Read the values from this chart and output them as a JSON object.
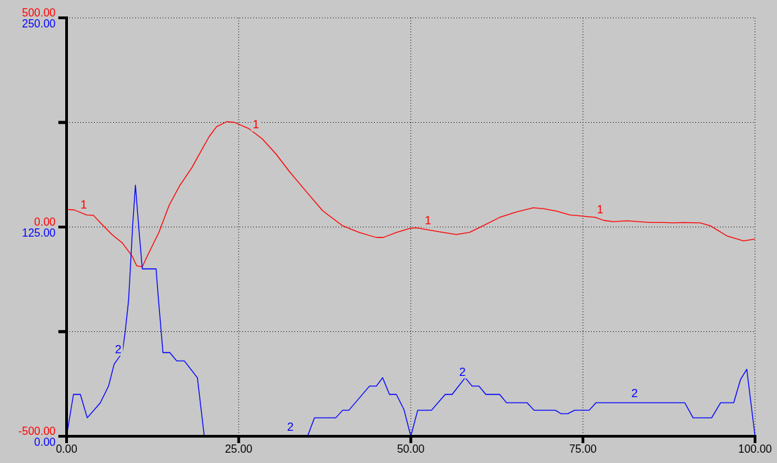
{
  "chart_data": {
    "type": "line",
    "xlim": [
      0,
      100
    ],
    "xticks": [
      {
        "value": 0,
        "label": "0.00"
      },
      {
        "value": 25,
        "label": "25.00"
      },
      {
        "value": 50,
        "label": "50.00"
      },
      {
        "value": 75,
        "label": "75.00"
      },
      {
        "value": 100,
        "label": "100.00"
      }
    ],
    "ylim": [
      -500,
      500
    ],
    "yticks": [
      {
        "value": -500,
        "label": "-500.00"
      },
      {
        "value": -250,
        "label": null
      },
      {
        "value": 0,
        "label": "0.00"
      },
      {
        "value": 250,
        "label": null
      },
      {
        "value": 500,
        "label": "500.00"
      }
    ],
    "y2lim": [
      0,
      250
    ],
    "y2ticks": [
      {
        "value": 0,
        "label": "0.00"
      },
      {
        "value": 62.5,
        "label": null
      },
      {
        "value": 125,
        "label": "125.00"
      },
      {
        "value": 187.5,
        "label": null
      },
      {
        "value": 250,
        "label": "250.00"
      }
    ],
    "grid": true,
    "line_style": "solid",
    "marker": "none",
    "series": [
      {
        "name": "1",
        "color": "#ff0000",
        "x": [
          0,
          1.1,
          2.9,
          3.9,
          5.1,
          6.6,
          8.1,
          9.5,
          10.2,
          11,
          11.7,
          13.4,
          14.9,
          16.4,
          18.2,
          18.9,
          20.7,
          21.8,
          23.3,
          24.4,
          26.5,
          28.4,
          30.4,
          32.3,
          34.8,
          37.2,
          40.1,
          42.5,
          45,
          46,
          47.9,
          49.9,
          50.8,
          54.7,
          56.6,
          58.5,
          60.5,
          62.9,
          65.3,
          67.8,
          69.2,
          71.2,
          73.1,
          75,
          76.8,
          78,
          79.4,
          81.4,
          84.8,
          86.7,
          88.2,
          89.6,
          92,
          93.5,
          95.9,
          98.3,
          100
        ],
        "values": [
          42,
          41,
          29,
          28,
          7,
          -18,
          -38,
          -69,
          -93,
          -95,
          -70,
          -13,
          52,
          98,
          142,
          163,
          216,
          240,
          252,
          250,
          235,
          211,
          175,
          134,
          85,
          39,
          3,
          -13,
          -25,
          -25,
          -13,
          -3,
          -2,
          -13,
          -18,
          -13,
          3,
          23,
          36,
          46,
          44,
          38,
          29,
          26,
          23,
          16,
          13,
          15,
          11,
          11,
          10,
          11,
          10,
          3,
          -21,
          -33,
          -29
        ]
      },
      {
        "name": "2",
        "color": "#0000ff",
        "axis": "y2",
        "x": [
          0,
          1,
          2,
          3,
          4.9,
          6.1,
          6.9,
          8.1,
          8.5,
          9,
          9.3,
          9.6,
          10,
          10.5,
          11,
          13,
          13.3,
          14,
          15,
          16,
          17.1,
          19,
          20,
          35,
          36,
          39.1,
          40.1,
          41,
          44,
          45,
          45.9,
          46.9,
          47.9,
          49,
          50,
          51,
          53,
          55,
          56,
          57.9,
          58.9,
          59.9,
          60.9,
          62.9,
          63.9,
          66.9,
          67.9,
          71,
          71.8,
          72.8,
          73.8,
          75.9,
          76.9,
          89.8,
          91,
          93.7,
          95,
          96.9,
          97.9,
          98.8,
          100
        ],
        "values": [
          0,
          25,
          25,
          11,
          20,
          30,
          43,
          50,
          62,
          81,
          103,
          126,
          150,
          124,
          100,
          100,
          84,
          50,
          50,
          45,
          45,
          35,
          0,
          0,
          11,
          11,
          15.5,
          15.5,
          30,
          30,
          35,
          25,
          25,
          16,
          0,
          15.5,
          15.5,
          25,
          25,
          35,
          30,
          30,
          25,
          25,
          20,
          20,
          15.5,
          15.5,
          13.5,
          13.5,
          15.5,
          15.5,
          20,
          20,
          11,
          11,
          20,
          20,
          34,
          40,
          0
        ]
      }
    ]
  }
}
